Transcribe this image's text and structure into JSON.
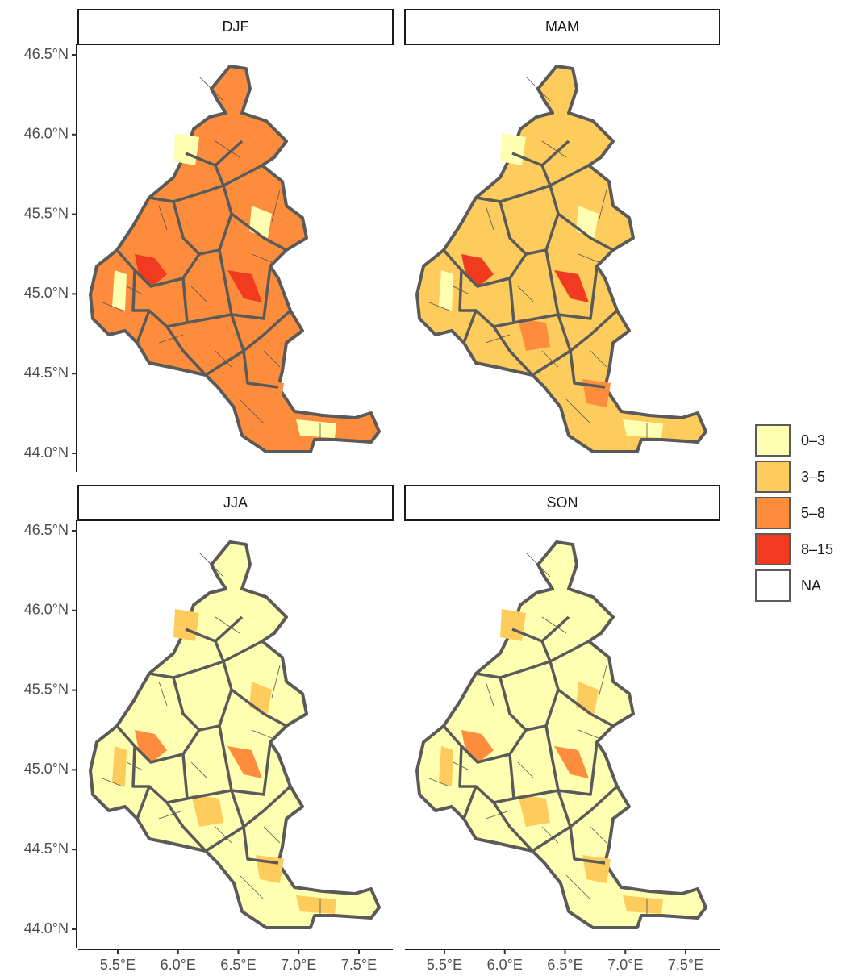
{
  "panels": [
    {
      "title": "DJF"
    },
    {
      "title": "MAM"
    },
    {
      "title": "JJA"
    },
    {
      "title": "SON"
    }
  ],
  "lat_ticks": [
    {
      "value": 46.5,
      "label": "46.5°N"
    },
    {
      "value": 46.0,
      "label": "46.0°N"
    },
    {
      "value": 45.5,
      "label": "45.5°N"
    },
    {
      "value": 45.0,
      "label": "45.0°N"
    },
    {
      "value": 44.5,
      "label": "44.5°N"
    },
    {
      "value": 44.0,
      "label": "44.0°N"
    }
  ],
  "lon_ticks": [
    {
      "value": 5.5,
      "label": "5.5°E"
    },
    {
      "value": 6.0,
      "label": "6.0°E"
    },
    {
      "value": 6.5,
      "label": "6.5°E"
    },
    {
      "value": 7.0,
      "label": "7.0°E"
    },
    {
      "value": 7.5,
      "label": "7.5°E"
    }
  ],
  "legend": {
    "items": [
      {
        "label": "0–3",
        "color": "#ffffb2"
      },
      {
        "label": "3–5",
        "color": "#fecc5c"
      },
      {
        "label": "5–8",
        "color": "#fd8d3c"
      },
      {
        "label": "8–15",
        "color": "#f03b20"
      },
      {
        "label": "NA",
        "color": "#ffffff"
      }
    ]
  }
}
